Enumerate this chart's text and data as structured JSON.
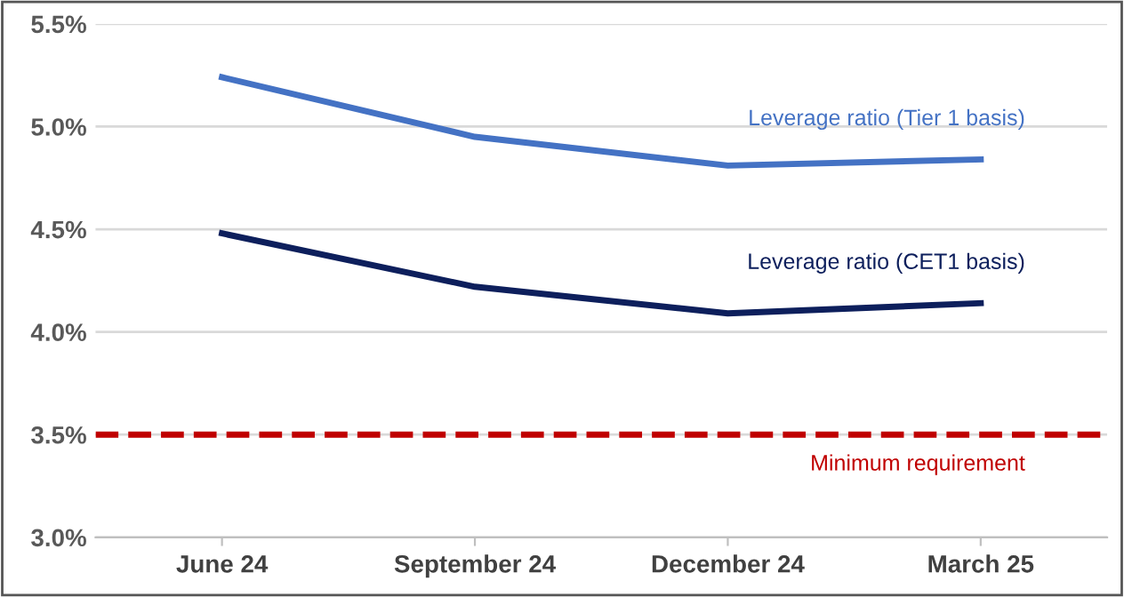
{
  "chart_data": {
    "type": "line",
    "categories": [
      "June 24",
      "September 24",
      "December 24",
      "March 25"
    ],
    "series": [
      {
        "name": "Leverage ratio (Tier 1 basis)",
        "color": "#4472c4",
        "values": [
          5.24,
          4.95,
          4.81,
          4.84
        ]
      },
      {
        "name": "Leverage ratio (CET1 basis)",
        "color": "#0d1f5c",
        "values": [
          4.48,
          4.22,
          4.09,
          4.14
        ]
      }
    ],
    "ylim": [
      3.0,
      5.5
    ],
    "yticks": [
      {
        "value": 3.0,
        "label": "3.0%"
      },
      {
        "value": 3.5,
        "label": "3.5%"
      },
      {
        "value": 4.0,
        "label": "4.0%"
      },
      {
        "value": 4.5,
        "label": "4.5%"
      },
      {
        "value": 5.0,
        "label": "5.0%"
      },
      {
        "value": 5.5,
        "label": "5.5%"
      }
    ],
    "ref_lines": [
      {
        "axis": "y",
        "value": 3.5,
        "label": "Minimum requirement",
        "color": "#c00000",
        "line_style": "dashed"
      }
    ],
    "grid": "y",
    "legend": false,
    "marker": "none",
    "line_style": "solid"
  }
}
